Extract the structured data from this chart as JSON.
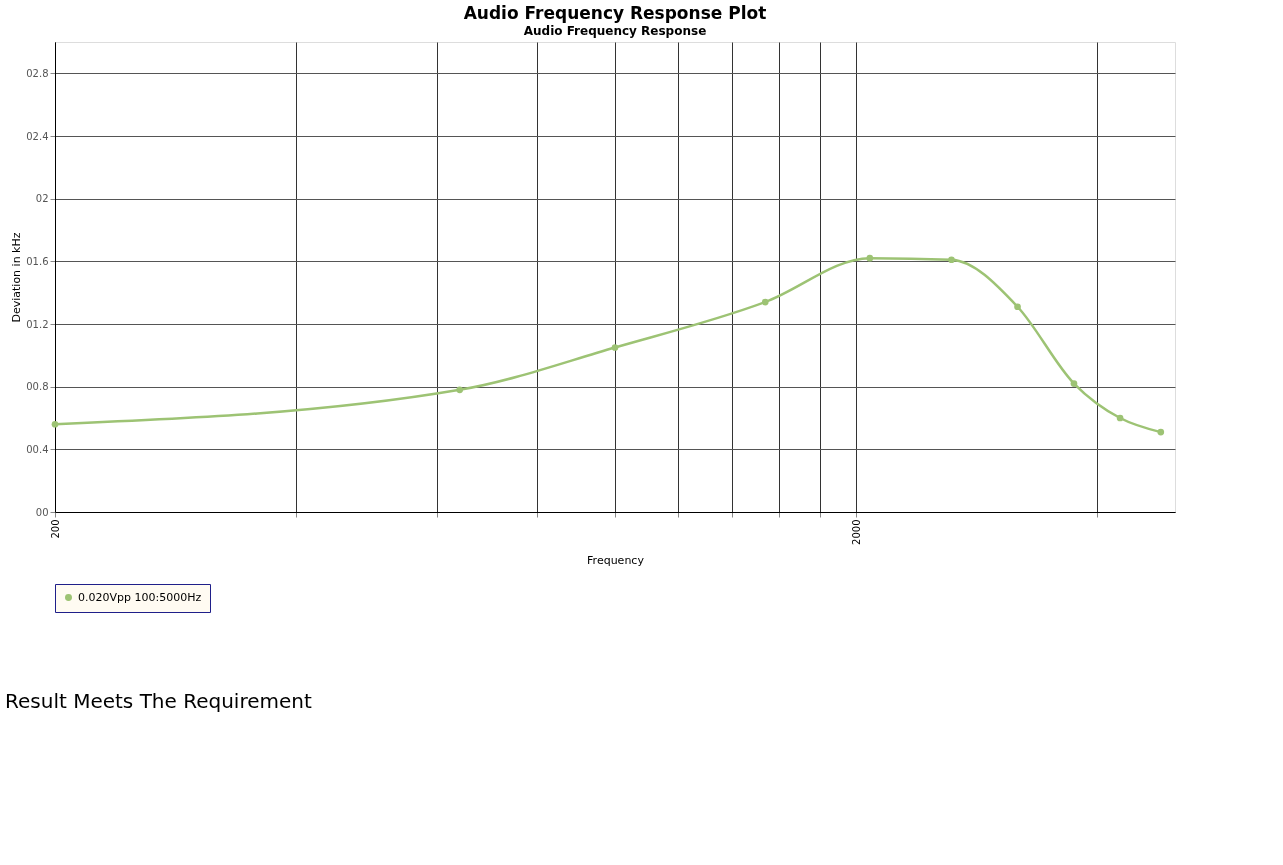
{
  "chart_data": {
    "type": "line",
    "title": "Audio Frequency Response Plot",
    "subtitle": "Audio Frequency Response",
    "xlabel": "Frequency",
    "ylabel": "Deviation in kHz",
    "annotations": [
      "Result Meets The Requirement"
    ],
    "log": "x",
    "marker": "circle",
    "line_style": "solid",
    "grid": true,
    "legend": "bottom",
    "xlim": [
      200,
      5000
    ],
    "xticks": [
      200,
      {
        "value": 400,
        "label": null
      },
      {
        "value": 600,
        "label": null
      },
      {
        "value": 800,
        "label": null
      },
      {
        "value": 1000,
        "label": null
      },
      {
        "value": 1200,
        "label": null
      },
      {
        "value": 1400,
        "label": null
      },
      {
        "value": 1600,
        "label": null
      },
      {
        "value": 1800,
        "label": null
      },
      2000,
      {
        "value": 4000,
        "label": null
      }
    ],
    "ylim": [
      0,
      3
    ],
    "yticks": [
      {
        "value": 0,
        "label": "00"
      },
      {
        "value": 0.4,
        "label": "00.4"
      },
      {
        "value": 0.8,
        "label": "00.8"
      },
      {
        "value": 1.2,
        "label": "01.2"
      },
      {
        "value": 1.6,
        "label": "01.6"
      },
      {
        "value": 2,
        "label": "02"
      },
      {
        "value": 2.4,
        "label": "02.4"
      },
      {
        "value": 2.8,
        "label": "02.8"
      }
    ],
    "series": [
      {
        "name": "0.020Vpp 100:5000Hz",
        "color": "#9dc374",
        "x": [
          200,
          640,
          1000,
          1540,
          2080,
          2630,
          3180,
          3740,
          4270,
          4800
        ],
        "values": [
          0.56,
          0.78,
          1.05,
          1.34,
          1.62,
          1.61,
          1.31,
          0.82,
          0.6,
          0.51
        ]
      }
    ]
  }
}
